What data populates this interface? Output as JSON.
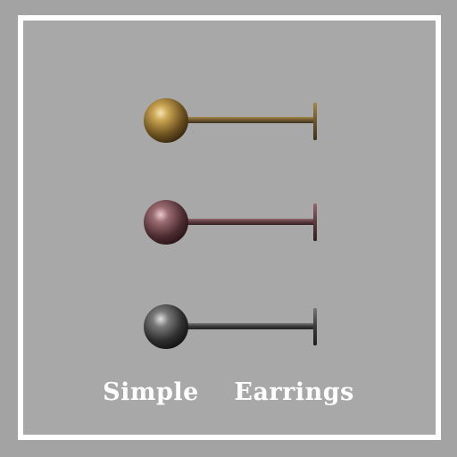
{
  "caption": "Simple    Earrings",
  "earrings": [
    {
      "icon": "gold-ball-stud-earring-icon",
      "ball_color": "#8a6a2e",
      "highlight": "#f3e3b2",
      "bar_color": "#6b5531"
    },
    {
      "icon": "rose-ball-stud-earring-icon",
      "ball_color": "#6a4248",
      "highlight": "#e9c9cd",
      "bar_color": "#5a3a3f"
    },
    {
      "icon": "silver-ball-stud-earring-icon",
      "ball_color": "#3e3e3e",
      "highlight": "#e0e0e0",
      "bar_color": "#3a3a3a"
    }
  ],
  "colors": {
    "background": "#a8a8a8",
    "frame": "#ffffff",
    "caption": "#ffffff"
  }
}
